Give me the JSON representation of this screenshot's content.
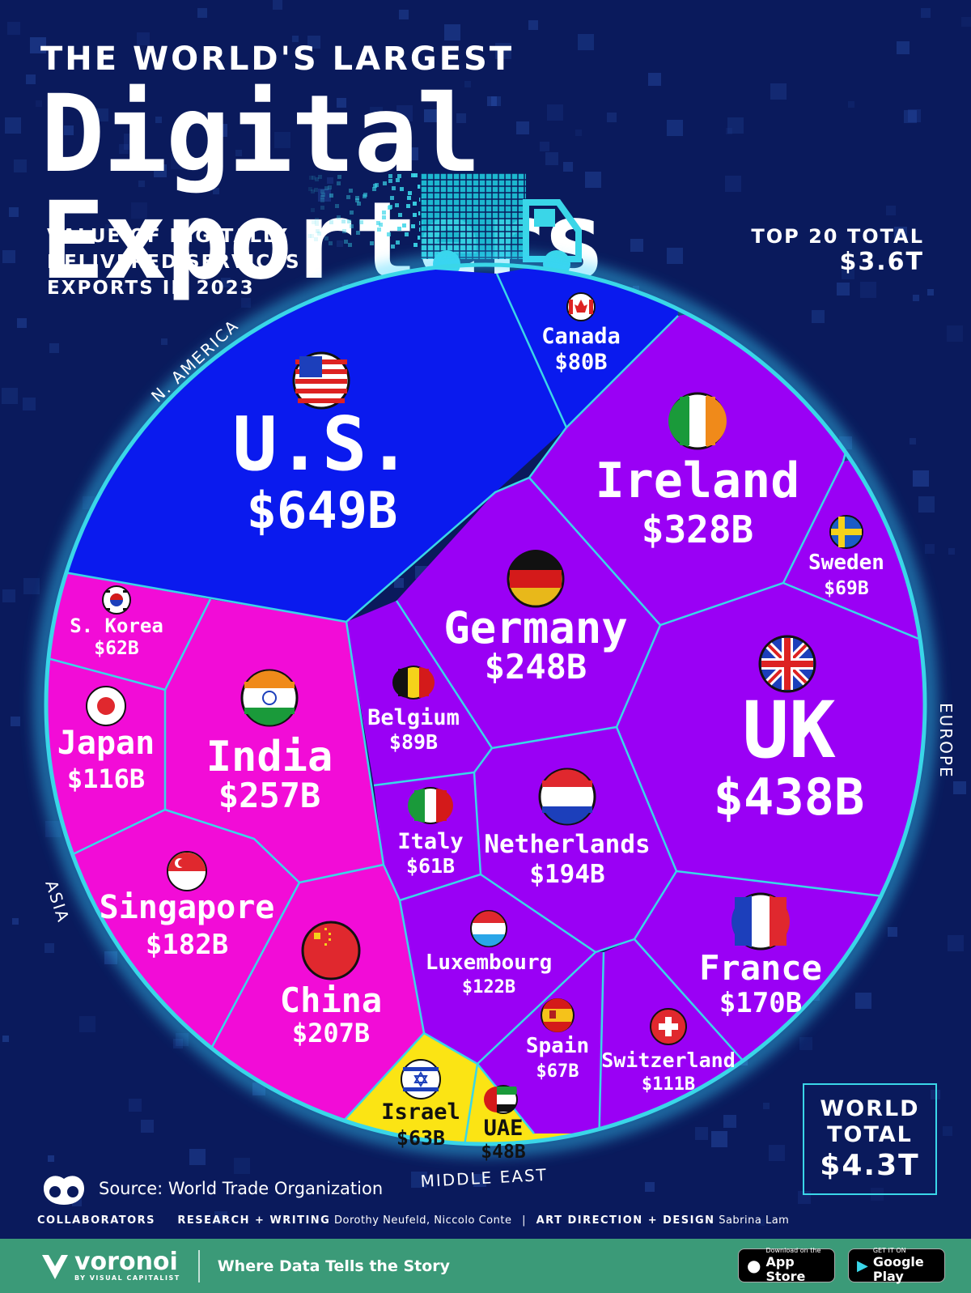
{
  "header": {
    "kicker": "THE WORLD'S LARGEST",
    "title": "Digital Exporters",
    "subtitle_lines": [
      "VALUE OF DIGITALLY",
      "DELIVERED SERVICES",
      "EXPORTS IN 2023"
    ],
    "top20_label": "TOP 20 TOTAL",
    "top20_value": "$3.6T"
  },
  "chart_data": {
    "type": "voronoi",
    "unit": "USD billions",
    "regions": [
      "N. AMERICA",
      "EUROPE",
      "ASIA",
      "MIDDLE EAST"
    ],
    "region_colors": {
      "N. AMERICA": "#0a1aee",
      "EUROPE": "#9a00f5",
      "ASIA": "#f20cd7",
      "MIDDLE EAST": "#fbe414"
    },
    "countries": [
      {
        "name": "U.S.",
        "label": "$649B",
        "value": 649,
        "region": "N. AMERICA"
      },
      {
        "name": "Canada",
        "label": "$80B",
        "value": 80,
        "region": "N. AMERICA"
      },
      {
        "name": "Ireland",
        "label": "$328B",
        "value": 328,
        "region": "EUROPE"
      },
      {
        "name": "Sweden",
        "label": "$69B",
        "value": 69,
        "region": "EUROPE"
      },
      {
        "name": "Germany",
        "label": "$248B",
        "value": 248,
        "region": "EUROPE"
      },
      {
        "name": "UK",
        "label": "$438B",
        "value": 438,
        "region": "EUROPE"
      },
      {
        "name": "Belgium",
        "label": "$89B",
        "value": 89,
        "region": "EUROPE"
      },
      {
        "name": "Italy",
        "label": "$61B",
        "value": 61,
        "region": "EUROPE"
      },
      {
        "name": "Netherlands",
        "label": "$194B",
        "value": 194,
        "region": "EUROPE"
      },
      {
        "name": "Luxembourg",
        "label": "$122B",
        "value": 122,
        "region": "EUROPE"
      },
      {
        "name": "Spain",
        "label": "$67B",
        "value": 67,
        "region": "EUROPE"
      },
      {
        "name": "Switzerland",
        "label": "$111B",
        "value": 111,
        "region": "EUROPE"
      },
      {
        "name": "France",
        "label": "$170B",
        "value": 170,
        "region": "EUROPE"
      },
      {
        "name": "S. Korea",
        "label": "$62B",
        "value": 62,
        "region": "ASIA"
      },
      {
        "name": "Japan",
        "label": "$116B",
        "value": 116,
        "region": "ASIA"
      },
      {
        "name": "India",
        "label": "$257B",
        "value": 257,
        "region": "ASIA"
      },
      {
        "name": "Singapore",
        "label": "$182B",
        "value": 182,
        "region": "ASIA"
      },
      {
        "name": "China",
        "label": "$207B",
        "value": 207,
        "region": "ASIA"
      },
      {
        "name": "Israel",
        "label": "$63B",
        "value": 63,
        "region": "MIDDLE EAST"
      },
      {
        "name": "UAE",
        "label": "$48B",
        "value": 48,
        "region": "MIDDLE EAST"
      }
    ]
  },
  "world_total": {
    "label_line1": "WORLD",
    "label_line2": "TOTAL",
    "value": "$4.3T"
  },
  "source": "Source: World Trade Organization",
  "credits": {
    "collaborators": "COLLABORATORS",
    "research_label": "RESEARCH + WRITING",
    "research_names": "Dorothy Neufeld, Niccolo Conte",
    "design_label": "ART DIRECTION + DESIGN",
    "design_names": "Sabrina Lam"
  },
  "footer": {
    "brand": "voronoi",
    "brand_by": "BY VISUAL CAPITALIST",
    "tagline": "Where Data Tells the Story",
    "app_store_small": "Download on the",
    "app_store_big": "App Store",
    "google_small": "GET IT ON",
    "google_big": "Google Play"
  }
}
